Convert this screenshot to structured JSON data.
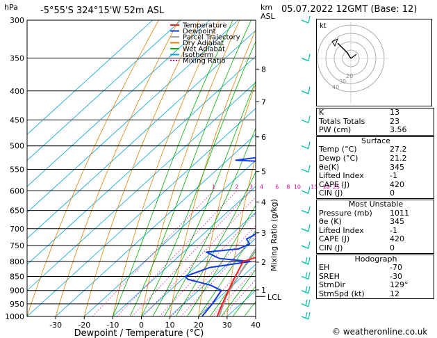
{
  "header": {
    "p_unit": "hPa",
    "location": "-5°55'S  324°15'W  52m  ASL",
    "km_label": "km",
    "asl_label": "ASL",
    "datetime": "05.07.2022  12GMT  (Base: 12)"
  },
  "axes": {
    "xlabel": "Dewpoint / Temperature (°C)",
    "mixing_label": "Mixing Ratio (g/kg)",
    "hodo_label": "kt",
    "lcl_label": "LCL"
  },
  "colors": {
    "temperature": "#ff2020",
    "dewpoint": "#1038e0",
    "parcel": "#a0a0a0",
    "dry_adiabat": "#e08000",
    "wet_adiabat": "#00b000",
    "isotherm": "#00a0e0",
    "mixing_ratio": "#e000a0",
    "wind": "#00c0b0"
  },
  "chart_data": {
    "type": "skew-t",
    "pressure_levels": [
      300,
      350,
      400,
      450,
      500,
      550,
      600,
      650,
      700,
      750,
      800,
      850,
      900,
      950,
      1000
    ],
    "temperature_ticks": [
      -30,
      -20,
      -10,
      0,
      10,
      20,
      30,
      40
    ],
    "xlim": [
      -40,
      40
    ],
    "plim": [
      300,
      1000
    ],
    "km_ticks": [
      {
        "label": "8",
        "p": 366
      },
      {
        "label": "7",
        "p": 418
      },
      {
        "label": "6",
        "p": 482
      },
      {
        "label": "5",
        "p": 555
      },
      {
        "label": "4",
        "p": 628
      },
      {
        "label": "3",
        "p": 712
      },
      {
        "label": "2",
        "p": 802
      },
      {
        "label": "1",
        "p": 898
      }
    ],
    "lcl_pressure": 922,
    "mixing_ratios": [
      "1",
      "2",
      "3",
      "4",
      "6",
      "8",
      "10",
      "15",
      "20",
      "25"
    ],
    "legend": [
      "Temperature",
      "Dewpoint",
      "Parcel Trajectory",
      "Dry Adiabat",
      "Wet Adiabat",
      "Isotherm",
      "Mixing Ratio"
    ],
    "series": [
      {
        "name": "Temperature",
        "points": [
          [
            1000,
            26.5
          ],
          [
            950,
            23.5
          ],
          [
            900,
            20.5
          ],
          [
            850,
            17.5
          ],
          [
            800,
            14.5
          ],
          [
            780,
            19
          ],
          [
            750,
            16
          ],
          [
            720,
            15
          ],
          [
            700,
            13.5
          ],
          [
            650,
            10
          ],
          [
            600,
            6.5
          ],
          [
            560,
            4
          ],
          [
            550,
            3
          ],
          [
            500,
            -2
          ],
          [
            450,
            -7
          ],
          [
            400,
            -14.5
          ],
          [
            350,
            -23
          ],
          [
            300,
            -33
          ]
        ]
      },
      {
        "name": "Dewpoint",
        "points": [
          [
            1000,
            21.2
          ],
          [
            950,
            20
          ],
          [
            900,
            18
          ],
          [
            880,
            12
          ],
          [
            860,
            2
          ],
          [
            850,
            0
          ],
          [
            820,
            5
          ],
          [
            800,
            17
          ],
          [
            790,
            5
          ],
          [
            770,
            -2
          ],
          [
            760,
            8
          ],
          [
            745,
            10
          ],
          [
            730,
            7
          ],
          [
            720,
            8
          ],
          [
            700,
            8.5
          ],
          [
            680,
            10
          ],
          [
            650,
            7
          ],
          [
            600,
            4
          ],
          [
            560,
            0
          ],
          [
            550,
            -7
          ],
          [
            535,
            -9
          ],
          [
            530,
            -27
          ],
          [
            520,
            -16
          ],
          [
            500,
            -24
          ],
          [
            480,
            -5
          ],
          [
            465,
            -18
          ],
          [
            450,
            -28
          ],
          [
            440,
            -8
          ],
          [
            420,
            -10
          ],
          [
            400,
            -17
          ],
          [
            350,
            -30
          ],
          [
            300,
            -29
          ]
        ]
      },
      {
        "name": "Parcel Trajectory",
        "points": [
          [
            1000,
            27.2
          ],
          [
            922,
            22
          ],
          [
            850,
            18.5
          ],
          [
            800,
            16
          ],
          [
            750,
            13.5
          ],
          [
            700,
            11
          ],
          [
            650,
            8
          ],
          [
            600,
            4.5
          ],
          [
            550,
            0.5
          ],
          [
            500,
            -4
          ],
          [
            450,
            -9.5
          ],
          [
            400,
            -16
          ],
          [
            350,
            -24
          ],
          [
            300,
            -34
          ]
        ]
      }
    ]
  },
  "indices": {
    "rows": [
      {
        "label": "K",
        "value": "13"
      },
      {
        "label": "Totals Totals",
        "value": "23"
      },
      {
        "label": "PW (cm)",
        "value": "3.56"
      }
    ]
  },
  "surface": {
    "title": "Surface",
    "rows": [
      {
        "label": "Temp (°C)",
        "value": "27.2"
      },
      {
        "label": "Dewp (°C)",
        "value": "21.2"
      },
      {
        "label": "θe(K)",
        "value": "345"
      },
      {
        "label": "Lifted Index",
        "value": "-1"
      },
      {
        "label": "CAPE (J)",
        "value": "420"
      },
      {
        "label": "CIN (J)",
        "value": "0"
      }
    ]
  },
  "most_unstable": {
    "title": "Most Unstable",
    "rows": [
      {
        "label": "Pressure (mb)",
        "value": "1011"
      },
      {
        "label": "θe (K)",
        "value": "345"
      },
      {
        "label": "Lifted Index",
        "value": "-1"
      },
      {
        "label": "CAPE (J)",
        "value": "420"
      },
      {
        "label": "CIN (J)",
        "value": "0"
      }
    ]
  },
  "hodograph": {
    "title": "Hodograph",
    "rows": [
      {
        "label": "EH",
        "value": "-70"
      },
      {
        "label": "SREH",
        "value": "-30"
      },
      {
        "label": "StmDir",
        "value": "129°"
      },
      {
        "label": "StmSpd (kt)",
        "value": "12"
      }
    ],
    "ring_labels": [
      "40",
      "30",
      "20"
    ]
  },
  "footer": {
    "credit": "© weatheronline.co.uk"
  }
}
